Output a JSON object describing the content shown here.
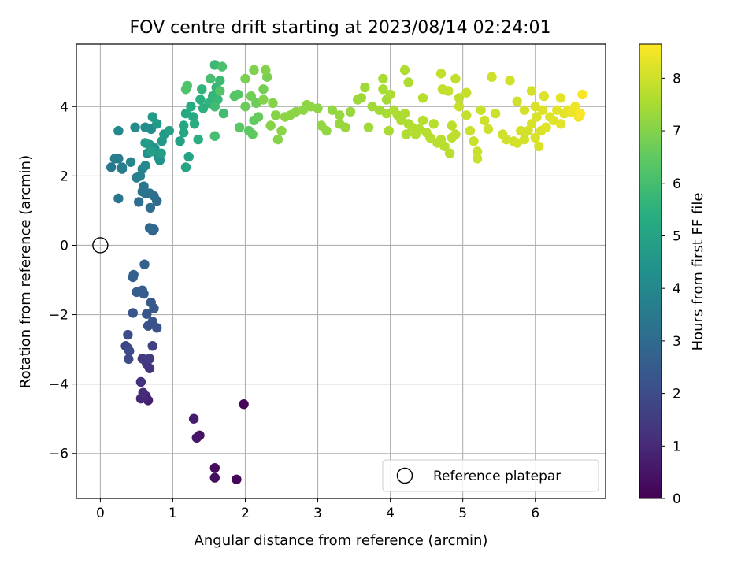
{
  "chart_data": {
    "type": "scatter",
    "title": "FOV centre drift starting at 2023/08/14 02:24:01",
    "xlabel": "Angular distance from reference (arcmin)",
    "ylabel": "Rotation from reference (arcmin)",
    "xlim": [
      -0.33,
      6.97
    ],
    "ylim": [
      -7.3,
      5.8
    ],
    "x_ticks": [
      0,
      1,
      2,
      3,
      4,
      5,
      6
    ],
    "x_tick_labels": [
      "0",
      "1",
      "2",
      "3",
      "4",
      "5",
      "6"
    ],
    "y_ticks": [
      -6,
      -4,
      -2,
      0,
      2,
      4
    ],
    "y_tick_labels": [
      "−6",
      "−4",
      "−2",
      "0",
      "2",
      "4"
    ],
    "grid": true,
    "colorbar": {
      "label": "Hours from first FF file",
      "range": [
        0,
        8.65
      ],
      "ticks": [
        0,
        1,
        2,
        3,
        4,
        5,
        6,
        7,
        8
      ],
      "tick_labels": [
        "0",
        "1",
        "2",
        "3",
        "4",
        "5",
        "6",
        "7",
        "8"
      ],
      "colormap": "viridis"
    },
    "legend": {
      "placement": "lower-right",
      "entries": [
        {
          "label": "Reference platepar",
          "marker": "open-circle"
        }
      ]
    },
    "reference_point": {
      "x": 0,
      "y": 0
    },
    "points": [
      [
        1.98,
        -4.58,
        0.05
      ],
      [
        1.88,
        -6.75,
        0.15
      ],
      [
        1.58,
        -6.42,
        0.25
      ],
      [
        1.58,
        -6.7,
        0.35
      ],
      [
        1.37,
        -5.48,
        0.45
      ],
      [
        1.33,
        -5.55,
        0.55
      ],
      [
        1.29,
        -5.0,
        0.65
      ],
      [
        0.66,
        -4.47,
        0.75
      ],
      [
        0.63,
        -4.35,
        0.85
      ],
      [
        0.56,
        -4.42,
        0.95
      ],
      [
        0.59,
        -4.25,
        1.05
      ],
      [
        0.56,
        -3.94,
        1.15
      ],
      [
        0.68,
        -3.55,
        1.25
      ],
      [
        0.64,
        -3.42,
        1.35
      ],
      [
        0.58,
        -3.27,
        1.45
      ],
      [
        0.68,
        -3.27,
        1.55
      ],
      [
        0.72,
        -2.9,
        1.65
      ],
      [
        0.35,
        -2.9,
        1.75
      ],
      [
        0.38,
        -2.97,
        1.85
      ],
      [
        0.39,
        -3.28,
        1.95
      ],
      [
        0.4,
        -3.05,
        2.0
      ],
      [
        0.38,
        -2.58,
        2.05
      ],
      [
        0.78,
        -2.38,
        2.1
      ],
      [
        0.66,
        -2.32,
        2.15
      ],
      [
        0.72,
        -2.2,
        2.2
      ],
      [
        0.45,
        -1.95,
        2.25
      ],
      [
        0.64,
        -1.98,
        2.3
      ],
      [
        0.74,
        -1.82,
        2.35
      ],
      [
        0.7,
        -1.65,
        2.4
      ],
      [
        0.6,
        -1.4,
        2.45
      ],
      [
        0.5,
        -1.35,
        2.5
      ],
      [
        0.58,
        -1.3,
        2.55
      ],
      [
        0.45,
        -0.92,
        2.6
      ],
      [
        0.46,
        -0.85,
        2.65
      ],
      [
        0.61,
        -0.55,
        2.7
      ],
      [
        0.72,
        0.42,
        2.8
      ],
      [
        0.74,
        0.46,
        2.85
      ],
      [
        0.68,
        0.5,
        2.9
      ],
      [
        0.78,
        1.28,
        3.0
      ],
      [
        0.69,
        1.08,
        3.05
      ],
      [
        0.53,
        1.25,
        3.1
      ],
      [
        0.74,
        1.42,
        3.15
      ],
      [
        0.68,
        1.5,
        3.2
      ],
      [
        0.62,
        1.5,
        3.25
      ],
      [
        0.58,
        1.55,
        3.3
      ],
      [
        0.6,
        1.7,
        3.35
      ],
      [
        0.25,
        1.35,
        3.4
      ],
      [
        0.3,
        2.2,
        3.45
      ],
      [
        0.15,
        2.25,
        3.5
      ],
      [
        0.25,
        2.5,
        3.55
      ],
      [
        0.3,
        2.25,
        3.6
      ],
      [
        0.2,
        2.5,
        3.65
      ],
      [
        0.5,
        1.95,
        3.7
      ],
      [
        0.55,
        2.0,
        3.8
      ],
      [
        0.58,
        2.2,
        3.85
      ],
      [
        0.42,
        2.4,
        3.9
      ],
      [
        0.62,
        2.3,
        4.0
      ],
      [
        0.25,
        3.3,
        4.05
      ],
      [
        0.48,
        3.4,
        4.1
      ],
      [
        0.62,
        3.4,
        4.15
      ],
      [
        0.7,
        3.35,
        4.2
      ],
      [
        0.65,
        2.65,
        4.25
      ],
      [
        0.8,
        2.55,
        4.35
      ],
      [
        0.82,
        2.45,
        4.4
      ],
      [
        0.75,
        2.8,
        4.45
      ],
      [
        0.68,
        2.9,
        4.5
      ],
      [
        0.85,
        3.0,
        4.55
      ],
      [
        0.88,
        3.2,
        4.6
      ],
      [
        0.78,
        3.5,
        4.65
      ],
      [
        0.72,
        3.7,
        4.7
      ],
      [
        0.62,
        2.95,
        4.75
      ],
      [
        0.7,
        2.7,
        4.8
      ],
      [
        0.84,
        2.65,
        4.85
      ],
      [
        0.95,
        3.3,
        4.9
      ],
      [
        1.1,
        3.0,
        4.95
      ],
      [
        1.22,
        2.55,
        5.0
      ],
      [
        1.18,
        2.25,
        5.05
      ],
      [
        1.15,
        3.25,
        5.1
      ],
      [
        1.15,
        3.45,
        5.15
      ],
      [
        1.18,
        3.8,
        5.2
      ],
      [
        1.28,
        3.7,
        5.25
      ],
      [
        1.25,
        4.0,
        5.3
      ],
      [
        1.3,
        3.5,
        5.35
      ],
      [
        1.35,
        3.05,
        5.4
      ],
      [
        1.38,
        4.2,
        5.45
      ],
      [
        1.42,
        3.95,
        5.5
      ],
      [
        1.5,
        4.1,
        5.55
      ],
      [
        1.4,
        4.5,
        5.6
      ],
      [
        1.55,
        4.3,
        5.65
      ],
      [
        1.6,
        4.55,
        5.7
      ],
      [
        1.62,
        4.2,
        5.75
      ],
      [
        1.58,
        5.2,
        5.8
      ],
      [
        1.65,
        4.75,
        5.85
      ],
      [
        1.58,
        4.0,
        5.9
      ],
      [
        1.7,
        3.8,
        5.95
      ],
      [
        1.58,
        3.15,
        6.0
      ],
      [
        1.52,
        4.8,
        6.05
      ],
      [
        1.68,
        5.15,
        6.1
      ],
      [
        1.2,
        4.6,
        6.15
      ],
      [
        1.18,
        4.5,
        6.2
      ],
      [
        1.65,
        4.45,
        6.25
      ],
      [
        1.85,
        4.3,
        6.3
      ],
      [
        1.9,
        4.35,
        6.35
      ],
      [
        1.92,
        3.4,
        6.4
      ],
      [
        2.05,
        3.3,
        6.45
      ],
      [
        2.1,
        3.2,
        6.5
      ],
      [
        2.12,
        3.6,
        6.55
      ],
      [
        2.18,
        3.7,
        6.6
      ],
      [
        2.0,
        4.0,
        6.65
      ],
      [
        2.15,
        4.1,
        6.7
      ],
      [
        2.08,
        4.3,
        6.75
      ],
      [
        2.25,
        4.5,
        6.8
      ],
      [
        2.3,
        4.85,
        6.85
      ],
      [
        2.0,
        4.8,
        6.9
      ],
      [
        2.12,
        5.05,
        6.95
      ],
      [
        2.28,
        5.05,
        7.0
      ],
      [
        2.25,
        4.2,
        7.0
      ],
      [
        2.38,
        4.1,
        7.05
      ],
      [
        2.42,
        3.75,
        7.05
      ],
      [
        2.45,
        3.05,
        7.05
      ],
      [
        2.5,
        3.3,
        7.1
      ],
      [
        2.55,
        3.7,
        7.1
      ],
      [
        2.62,
        3.75,
        7.1
      ],
      [
        2.7,
        3.85,
        7.1
      ],
      [
        2.8,
        3.9,
        7.15
      ],
      [
        2.9,
        4.0,
        7.15
      ],
      [
        3.0,
        3.95,
        7.15
      ],
      [
        3.05,
        3.45,
        7.2
      ],
      [
        3.12,
        3.3,
        7.2
      ],
      [
        3.2,
        3.9,
        7.2
      ],
      [
        3.3,
        3.75,
        7.25
      ],
      [
        3.3,
        3.5,
        7.25
      ],
      [
        3.38,
        3.4,
        7.3
      ],
      [
        3.45,
        3.85,
        7.3
      ],
      [
        3.55,
        4.2,
        7.35
      ],
      [
        3.6,
        4.25,
        7.35
      ],
      [
        3.7,
        3.4,
        7.4
      ],
      [
        3.75,
        4.0,
        7.4
      ],
      [
        3.85,
        3.9,
        7.45
      ],
      [
        3.95,
        4.2,
        7.45
      ],
      [
        3.9,
        4.5,
        7.5
      ],
      [
        3.95,
        3.8,
        7.5
      ],
      [
        3.98,
        3.3,
        7.5
      ],
      [
        4.05,
        3.9,
        7.55
      ],
      [
        4.1,
        3.75,
        7.55
      ],
      [
        4.15,
        3.6,
        7.6
      ],
      [
        4.2,
        3.8,
        7.6
      ],
      [
        4.22,
        3.2,
        7.6
      ],
      [
        4.25,
        3.5,
        7.6
      ],
      [
        4.3,
        3.4,
        7.65
      ],
      [
        4.35,
        3.2,
        7.65
      ],
      [
        4.4,
        3.35,
        7.65
      ],
      [
        4.45,
        3.6,
        7.7
      ],
      [
        4.5,
        3.25,
        7.7
      ],
      [
        4.55,
        3.1,
        7.7
      ],
      [
        4.6,
        3.5,
        7.7
      ],
      [
        4.65,
        2.95,
        7.75
      ],
      [
        4.7,
        3.05,
        7.75
      ],
      [
        4.75,
        2.85,
        7.75
      ],
      [
        4.82,
        2.65,
        7.75
      ],
      [
        4.85,
        3.45,
        7.8
      ],
      [
        4.85,
        3.1,
        7.8
      ],
      [
        4.9,
        3.2,
        7.8
      ],
      [
        4.95,
        4.25,
        7.8
      ],
      [
        4.72,
        4.5,
        7.85
      ],
      [
        4.9,
        4.8,
        7.85
      ],
      [
        4.7,
        4.95,
        7.85
      ],
      [
        4.8,
        4.45,
        7.9
      ],
      [
        4.95,
        4.0,
        7.9
      ],
      [
        5.05,
        3.75,
        7.9
      ],
      [
        5.1,
        3.3,
        7.95
      ],
      [
        5.15,
        3.0,
        7.95
      ],
      [
        5.2,
        2.7,
        7.95
      ],
      [
        5.25,
        3.9,
        7.95
      ],
      [
        5.3,
        3.6,
        8.0
      ],
      [
        5.35,
        3.35,
        8.0
      ],
      [
        5.4,
        4.85,
        8.0
      ],
      [
        5.45,
        3.8,
        8.0
      ],
      [
        5.55,
        3.2,
        8.05
      ],
      [
        5.6,
        3.05,
        8.05
      ],
      [
        5.65,
        4.75,
        8.05
      ],
      [
        5.7,
        3.0,
        8.05
      ],
      [
        5.75,
        2.95,
        8.1
      ],
      [
        5.8,
        3.3,
        8.1
      ],
      [
        5.85,
        3.05,
        8.1
      ],
      [
        5.9,
        3.3,
        8.1
      ],
      [
        5.95,
        3.5,
        8.15
      ],
      [
        6.0,
        3.1,
        8.15
      ],
      [
        6.02,
        3.7,
        8.15
      ],
      [
        6.05,
        2.85,
        8.15
      ],
      [
        6.08,
        3.3,
        8.2
      ],
      [
        6.1,
        3.9,
        8.2
      ],
      [
        6.12,
        4.3,
        8.2
      ],
      [
        6.15,
        3.4,
        8.25
      ],
      [
        6.2,
        3.7,
        8.25
      ],
      [
        6.25,
        3.6,
        8.25
      ],
      [
        6.3,
        3.9,
        8.3
      ],
      [
        6.35,
        3.5,
        8.3
      ],
      [
        6.4,
        3.8,
        8.3
      ],
      [
        6.45,
        3.9,
        8.35
      ],
      [
        6.5,
        3.85,
        8.4
      ],
      [
        6.55,
        4.0,
        8.45
      ],
      [
        6.6,
        3.7,
        8.5
      ],
      [
        6.65,
        4.35,
        8.55
      ],
      [
        6.62,
        3.8,
        8.6
      ],
      [
        5.95,
        4.45,
        8.1
      ],
      [
        5.75,
        4.15,
        8.05
      ],
      [
        5.2,
        2.5,
        7.95
      ],
      [
        5.05,
        4.4,
        7.9
      ],
      [
        6.0,
        4.0,
        8.15
      ],
      [
        5.85,
        3.9,
        8.1
      ],
      [
        6.35,
        4.25,
        8.3
      ],
      [
        4.45,
        4.25,
        7.7
      ],
      [
        4.2,
        5.05,
        7.6
      ],
      [
        4.25,
        4.7,
        7.6
      ],
      [
        4.0,
        4.35,
        7.55
      ],
      [
        3.9,
        4.8,
        7.5
      ],
      [
        3.65,
        4.55,
        7.4
      ],
      [
        2.85,
        4.05,
        7.15
      ],
      [
        2.35,
        3.45,
        7.05
      ]
    ]
  }
}
